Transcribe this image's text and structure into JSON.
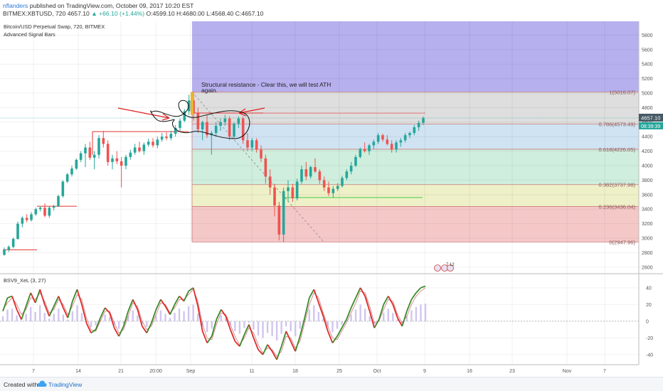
{
  "header": {
    "author": "nflanders",
    "published": "published on TradingView.com, October 09, 2017 10:20 EST",
    "symbol": "BITMEX:XBTUSD, 720",
    "last": "4657.10",
    "change": "▲ +66.10 (+1.44%)",
    "ohlc": "O:4599.10 H:4680.00 L:4568.40 C:4657.10"
  },
  "legend": {
    "title": "Bitcoin/USD Perpetual Swap, 720, BITMEX",
    "indicator": "Advanced Signal Bars",
    "oscillator": "BSV9_XeL (3, 27)"
  },
  "annotation": {
    "text_line1": "Structural resistance - Clear this, we will test ATH",
    "text_line2": "again."
  },
  "price_badges": {
    "last": "4657.10",
    "timer": "08:39:39"
  },
  "event_label": "7 12",
  "footer": {
    "created": "Created with",
    "brand": "TradingView"
  },
  "colors": {
    "up": "#26a69a",
    "down": "#ef5350",
    "fib_line": "#cc7a7a",
    "zone_top": "#b6b0ee",
    "zone_1_0786": "#dedede",
    "zone_0786_0618": "#cfe3f2",
    "zone_0618_0382": "#cfeedd",
    "zone_0382_0236": "#eef0c8",
    "zone_0236_0": "#f5c8c8",
    "osc_green": "#3a8a2a",
    "osc_red": "#e02a2a",
    "histogram": "#d0c6ee"
  },
  "chart_data": {
    "type": "candlestick",
    "y_axis": {
      "ticks": [
        2600,
        2800,
        3000,
        3200,
        3400,
        3600,
        3800,
        4000,
        4200,
        4400,
        4600,
        4800,
        5000,
        5200,
        5400,
        5600,
        5800
      ],
      "range": [
        2520,
        5990
      ]
    },
    "x_axis": {
      "labels": [
        "7",
        "14",
        "21",
        "20:00",
        "Sep",
        "11",
        "18",
        "25",
        "Oct",
        "9",
        "16",
        "23",
        "Nov",
        "7"
      ],
      "grid": true
    },
    "fibonacci": [
      {
        "label": "1(5016.07)",
        "ratio": 1,
        "value": 5016.07
      },
      {
        "label": "0.786(4573.49)",
        "ratio": 0.786,
        "value": 4573.49
      },
      {
        "label": "0.618(4226.05)",
        "ratio": 0.618,
        "value": 4226.05
      },
      {
        "label": "0.382(3737.98)",
        "ratio": 0.382,
        "value": 3737.98
      },
      {
        "label": "0.236(3436.04)",
        "ratio": 0.236,
        "value": 3436.04
      },
      {
        "label": "0(2947.96)",
        "ratio": 0,
        "value": 2947.96
      }
    ],
    "ohlc": [
      {
        "o": 2770,
        "h": 2870,
        "l": 2760,
        "c": 2840
      },
      {
        "o": 2840,
        "h": 2900,
        "l": 2810,
        "c": 2880
      },
      {
        "o": 2880,
        "h": 3010,
        "l": 2860,
        "c": 2990
      },
      {
        "o": 2990,
        "h": 3230,
        "l": 2980,
        "c": 3200
      },
      {
        "o": 3200,
        "h": 3300,
        "l": 3150,
        "c": 3280
      },
      {
        "o": 3280,
        "h": 3330,
        "l": 3220,
        "c": 3250
      },
      {
        "o": 3250,
        "h": 3360,
        "l": 3230,
        "c": 3330
      },
      {
        "o": 3330,
        "h": 3420,
        "l": 3310,
        "c": 3400
      },
      {
        "o": 3400,
        "h": 3440,
        "l": 3370,
        "c": 3420
      },
      {
        "o": 3420,
        "h": 3480,
        "l": 3290,
        "c": 3310
      },
      {
        "o": 3310,
        "h": 3440,
        "l": 3280,
        "c": 3420
      },
      {
        "o": 3420,
        "h": 3460,
        "l": 3380,
        "c": 3440
      },
      {
        "o": 3440,
        "h": 3600,
        "l": 3430,
        "c": 3580
      },
      {
        "o": 3580,
        "h": 3800,
        "l": 3560,
        "c": 3780
      },
      {
        "o": 3780,
        "h": 3900,
        "l": 3760,
        "c": 3880
      },
      {
        "o": 3880,
        "h": 4000,
        "l": 3850,
        "c": 3960
      },
      {
        "o": 3960,
        "h": 4100,
        "l": 3940,
        "c": 4080
      },
      {
        "o": 4080,
        "h": 4200,
        "l": 4050,
        "c": 4170
      },
      {
        "o": 4170,
        "h": 4300,
        "l": 3980,
        "c": 4250
      },
      {
        "o": 4250,
        "h": 4330,
        "l": 4080,
        "c": 4110
      },
      {
        "o": 4110,
        "h": 4200,
        "l": 3950,
        "c": 4150
      },
      {
        "o": 4150,
        "h": 4420,
        "l": 4100,
        "c": 4380
      },
      {
        "o": 4380,
        "h": 4480,
        "l": 4250,
        "c": 4300
      },
      {
        "o": 4300,
        "h": 4350,
        "l": 4000,
        "c": 4050
      },
      {
        "o": 4050,
        "h": 4150,
        "l": 3950,
        "c": 4100
      },
      {
        "o": 4100,
        "h": 4200,
        "l": 4020,
        "c": 4060
      },
      {
        "o": 4060,
        "h": 4120,
        "l": 3700,
        "c": 4000
      },
      {
        "o": 4000,
        "h": 4150,
        "l": 3950,
        "c": 4120
      },
      {
        "o": 4120,
        "h": 4220,
        "l": 4080,
        "c": 4180
      },
      {
        "o": 4180,
        "h": 4300,
        "l": 4150,
        "c": 4250
      },
      {
        "o": 4250,
        "h": 4330,
        "l": 4180,
        "c": 4200
      },
      {
        "o": 4200,
        "h": 4320,
        "l": 4150,
        "c": 4290
      },
      {
        "o": 4290,
        "h": 4370,
        "l": 4260,
        "c": 4330
      },
      {
        "o": 4330,
        "h": 4380,
        "l": 4250,
        "c": 4280
      },
      {
        "o": 4280,
        "h": 4400,
        "l": 4240,
        "c": 4360
      },
      {
        "o": 4360,
        "h": 4450,
        "l": 4330,
        "c": 4400
      },
      {
        "o": 4400,
        "h": 4460,
        "l": 4350,
        "c": 4380
      },
      {
        "o": 4380,
        "h": 4480,
        "l": 4350,
        "c": 4440
      },
      {
        "o": 4440,
        "h": 4560,
        "l": 4400,
        "c": 4520
      },
      {
        "o": 4520,
        "h": 4650,
        "l": 4480,
        "c": 4620
      },
      {
        "o": 4620,
        "h": 4780,
        "l": 4600,
        "c": 4750
      },
      {
        "o": 4750,
        "h": 4980,
        "l": 4700,
        "c": 4900
      },
      {
        "o": 4900,
        "h": 5016,
        "l": 4620,
        "c": 4720
      },
      {
        "o": 4720,
        "h": 4800,
        "l": 4450,
        "c": 4500
      },
      {
        "o": 4500,
        "h": 4620,
        "l": 4350,
        "c": 4600
      },
      {
        "o": 4600,
        "h": 4700,
        "l": 4380,
        "c": 4420
      },
      {
        "o": 4420,
        "h": 4480,
        "l": 4150,
        "c": 4450
      },
      {
        "o": 4450,
        "h": 4600,
        "l": 4400,
        "c": 4550
      },
      {
        "o": 4550,
        "h": 4650,
        "l": 4480,
        "c": 4600
      },
      {
        "o": 4600,
        "h": 4700,
        "l": 4550,
        "c": 4650
      },
      {
        "o": 4650,
        "h": 4680,
        "l": 4350,
        "c": 4400
      },
      {
        "o": 4400,
        "h": 4600,
        "l": 4380,
        "c": 4580
      },
      {
        "o": 4580,
        "h": 4680,
        "l": 4520,
        "c": 4650
      },
      {
        "o": 4650,
        "h": 4680,
        "l": 4300,
        "c": 4350
      },
      {
        "o": 4350,
        "h": 4450,
        "l": 4200,
        "c": 4250
      },
      {
        "o": 4250,
        "h": 4380,
        "l": 4200,
        "c": 4350
      },
      {
        "o": 4350,
        "h": 4380,
        "l": 4180,
        "c": 4220
      },
      {
        "o": 4220,
        "h": 4280,
        "l": 4050,
        "c": 4100
      },
      {
        "o": 4100,
        "h": 4150,
        "l": 3750,
        "c": 3850
      },
      {
        "o": 3850,
        "h": 3950,
        "l": 3600,
        "c": 3700
      },
      {
        "o": 3700,
        "h": 3750,
        "l": 3300,
        "c": 3450
      },
      {
        "o": 3450,
        "h": 3500,
        "l": 2970,
        "c": 3050
      },
      {
        "o": 3050,
        "h": 3700,
        "l": 2950,
        "c": 3650
      },
      {
        "o": 3650,
        "h": 3800,
        "l": 3500,
        "c": 3700
      },
      {
        "o": 3700,
        "h": 3750,
        "l": 3500,
        "c": 3550
      },
      {
        "o": 3550,
        "h": 3820,
        "l": 3520,
        "c": 3780
      },
      {
        "o": 3780,
        "h": 4000,
        "l": 3750,
        "c": 3950
      },
      {
        "o": 3950,
        "h": 4050,
        "l": 3800,
        "c": 3850
      },
      {
        "o": 3850,
        "h": 4000,
        "l": 3820,
        "c": 3980
      },
      {
        "o": 3980,
        "h": 4100,
        "l": 3900,
        "c": 3920
      },
      {
        "o": 3920,
        "h": 3950,
        "l": 3750,
        "c": 3800
      },
      {
        "o": 3800,
        "h": 3850,
        "l": 3650,
        "c": 3700
      },
      {
        "o": 3700,
        "h": 3780,
        "l": 3580,
        "c": 3620
      },
      {
        "o": 3620,
        "h": 3720,
        "l": 3560,
        "c": 3680
      },
      {
        "o": 3680,
        "h": 3760,
        "l": 3650,
        "c": 3720
      },
      {
        "o": 3720,
        "h": 3860,
        "l": 3700,
        "c": 3830
      },
      {
        "o": 3830,
        "h": 3950,
        "l": 3800,
        "c": 3920
      },
      {
        "o": 3920,
        "h": 4050,
        "l": 3880,
        "c": 4000
      },
      {
        "o": 4000,
        "h": 4150,
        "l": 3980,
        "c": 4120
      },
      {
        "o": 4120,
        "h": 4250,
        "l": 4100,
        "c": 4230
      },
      {
        "o": 4230,
        "h": 4320,
        "l": 4180,
        "c": 4200
      },
      {
        "o": 4200,
        "h": 4300,
        "l": 4150,
        "c": 4280
      },
      {
        "o": 4280,
        "h": 4360,
        "l": 4230,
        "c": 4330
      },
      {
        "o": 4330,
        "h": 4450,
        "l": 4300,
        "c": 4420
      },
      {
        "o": 4420,
        "h": 4440,
        "l": 4330,
        "c": 4360
      },
      {
        "o": 4360,
        "h": 4420,
        "l": 4280,
        "c": 4300
      },
      {
        "o": 4300,
        "h": 4350,
        "l": 4180,
        "c": 4220
      },
      {
        "o": 4220,
        "h": 4350,
        "l": 4180,
        "c": 4320
      },
      {
        "o": 4320,
        "h": 4380,
        "l": 4260,
        "c": 4350
      },
      {
        "o": 4350,
        "h": 4450,
        "l": 4320,
        "c": 4420
      },
      {
        "o": 4420,
        "h": 4470,
        "l": 4380,
        "c": 4450
      },
      {
        "o": 4450,
        "h": 4560,
        "l": 4420,
        "c": 4530
      },
      {
        "o": 4530,
        "h": 4620,
        "l": 4480,
        "c": 4590
      },
      {
        "o": 4590,
        "h": 4680,
        "l": 4560,
        "c": 4657
      }
    ],
    "oscillator": {
      "y_ticks": [
        -40,
        -20,
        0,
        20,
        40
      ],
      "y_range": [
        -52,
        56
      ],
      "series_main": [
        12,
        28,
        30,
        14,
        2,
        18,
        34,
        22,
        38,
        20,
        6,
        18,
        30,
        16,
        4,
        24,
        38,
        20,
        -2,
        -14,
        -10,
        4,
        16,
        10,
        -8,
        -18,
        -6,
        12,
        26,
        14,
        -6,
        -14,
        -2,
        14,
        26,
        18,
        8,
        20,
        30,
        24,
        36,
        40,
        18,
        -12,
        -26,
        -18,
        2,
        14,
        6,
        -10,
        -24,
        -30,
        -16,
        -4,
        -20,
        -34,
        -40,
        -28,
        -36,
        -46,
        -30,
        -12,
        -24,
        -36,
        -18,
        4,
        28,
        38,
        22,
        6,
        -12,
        -26,
        -18,
        -8,
        2,
        16,
        28,
        40,
        30,
        12,
        -8,
        2,
        20,
        30,
        20,
        4,
        -6,
        12,
        26,
        34,
        40,
        42
      ],
      "series_signal": [
        14,
        22,
        28,
        20,
        8,
        14,
        28,
        26,
        34,
        24,
        10,
        14,
        26,
        20,
        8,
        18,
        32,
        26,
        4,
        -10,
        -12,
        0,
        12,
        12,
        -2,
        -14,
        -10,
        6,
        22,
        18,
        0,
        -10,
        -6,
        8,
        22,
        20,
        10,
        16,
        26,
        26,
        32,
        38,
        24,
        -4,
        -20,
        -22,
        -4,
        10,
        8,
        -4,
        -18,
        -28,
        -20,
        -8,
        -14,
        -28,
        -38,
        -32,
        -34,
        -42,
        -36,
        -18,
        -20,
        -32,
        -24,
        -2,
        20,
        34,
        28,
        10,
        -6,
        -20,
        -22,
        -12,
        -2,
        10,
        22,
        36,
        34,
        18,
        -2,
        0,
        14,
        26,
        24,
        8,
        -2,
        6,
        20,
        30,
        36,
        40
      ]
    }
  }
}
